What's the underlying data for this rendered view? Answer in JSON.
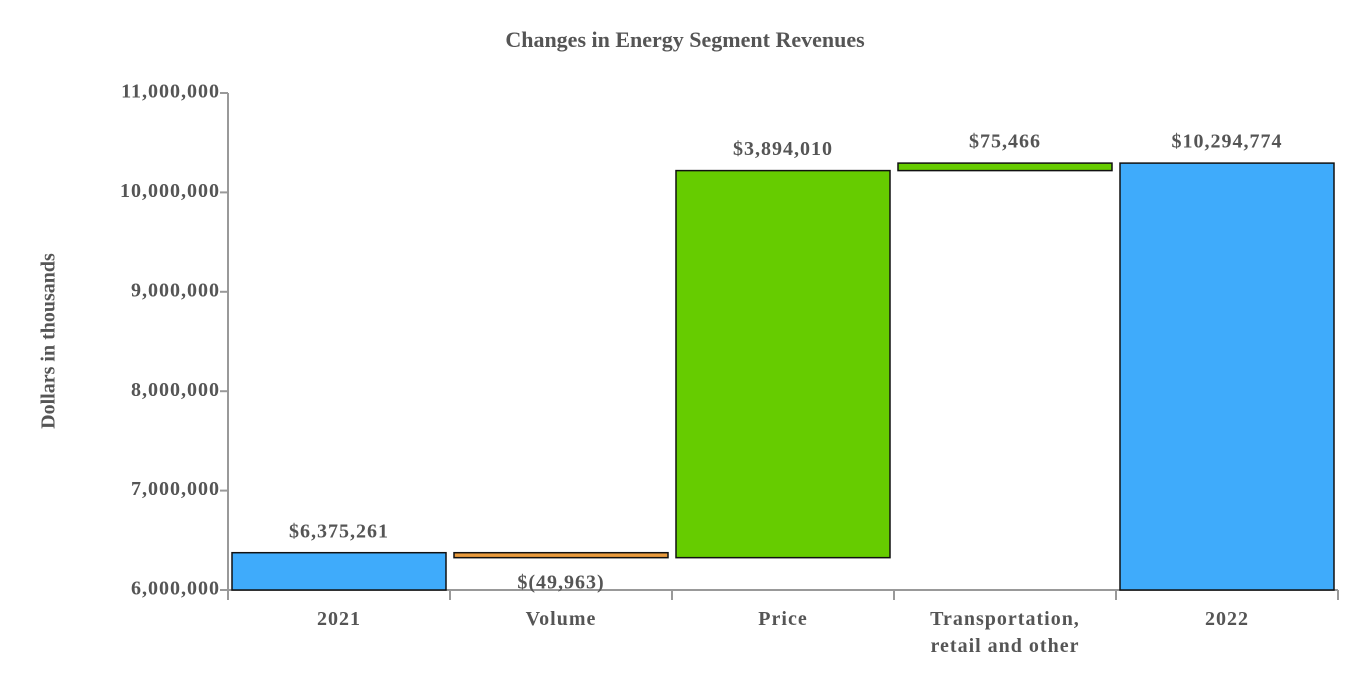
{
  "chart_data": {
    "type": "waterfall",
    "title": "Changes in Energy Segment Revenues",
    "ylabel": "Dollars in thousands",
    "categories": [
      "2021",
      "Volume",
      "Price",
      "Transportation, retail and other",
      "2022"
    ],
    "values": [
      6375261,
      -49963,
      3894010,
      75466,
      10294774
    ],
    "value_labels": [
      "$6,375,261",
      "$(49,963)",
      "$3,894,010",
      "$75,466",
      "$10,294,774"
    ],
    "bar_kinds": [
      "total",
      "delta",
      "delta",
      "delta",
      "total"
    ],
    "colors": [
      "#3fabfb",
      "#e89a3c",
      "#66cc00",
      "#66cc00",
      "#3fabfb"
    ],
    "ylim": [
      6000000,
      11000000
    ],
    "yticks": [
      {
        "value": 6000000,
        "label": "6,000,000"
      },
      {
        "value": 7000000,
        "label": "7,000,000"
      },
      {
        "value": 8000000,
        "label": "8,000,000"
      },
      {
        "value": 9000000,
        "label": "9,000,000"
      },
      {
        "value": 10000000,
        "label": "10,000,000"
      },
      {
        "value": 11000000,
        "label": "11,000,000"
      }
    ]
  }
}
